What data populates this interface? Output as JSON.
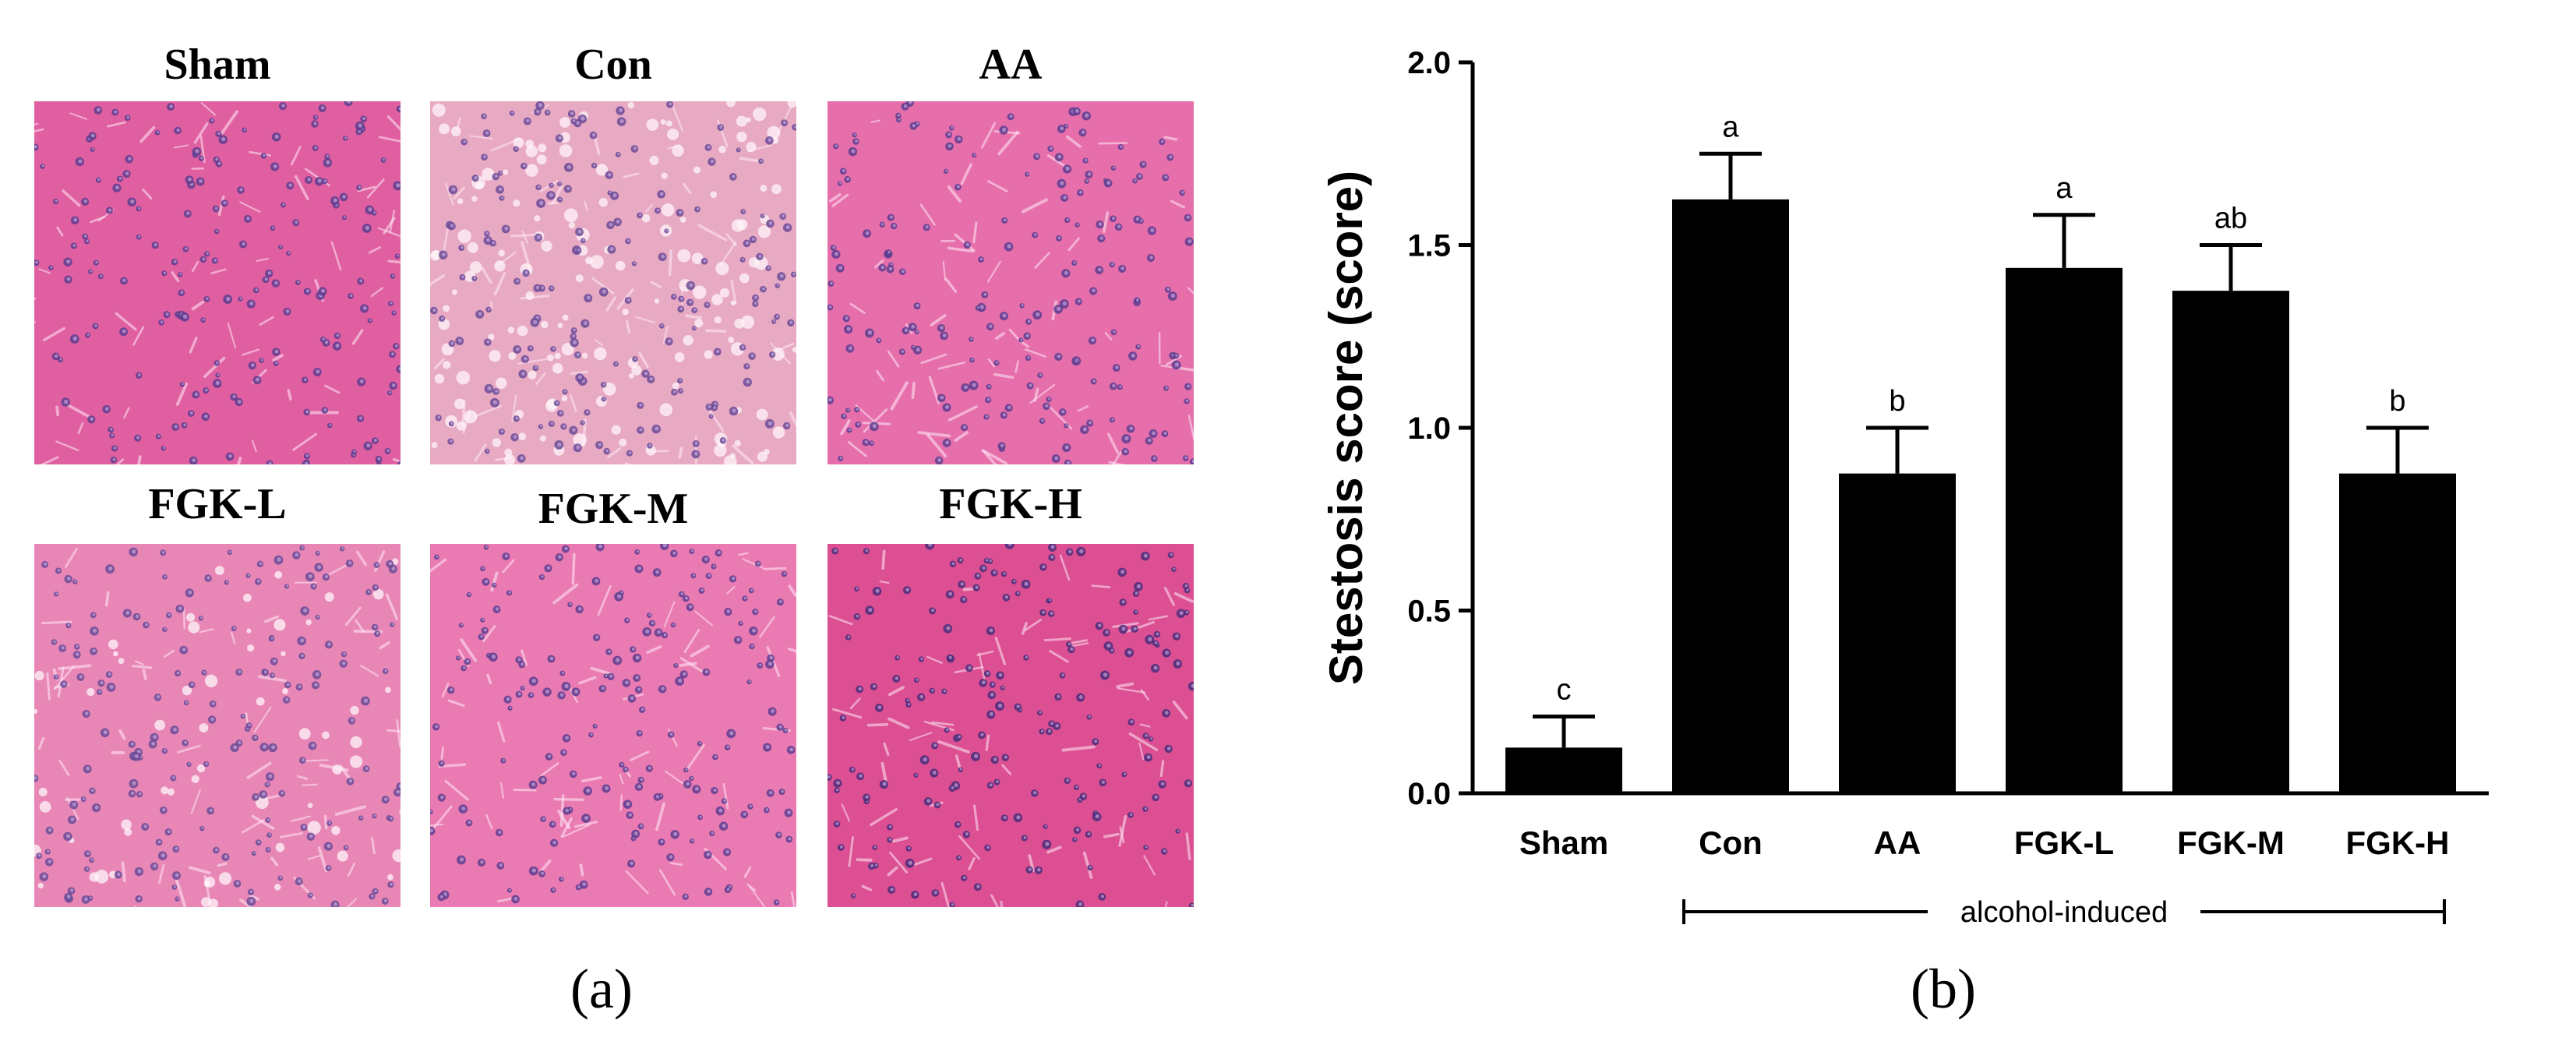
{
  "panel_a": {
    "label": "(a)",
    "micrographs": [
      {
        "title": "Sham",
        "tint": "#e05fa0",
        "nuclei": "#5d3c8f",
        "cell_density": "normal"
      },
      {
        "title": "Con",
        "tint": "#e8a9c3",
        "nuclei": "#6a4a96",
        "cell_density": "vacuolated"
      },
      {
        "title": "AA",
        "tint": "#e66fab",
        "nuclei": "#5d3c8f",
        "cell_density": "normal"
      },
      {
        "title": "FGK-L",
        "tint": "#e886b6",
        "nuclei": "#6a4a96",
        "cell_density": "mild"
      },
      {
        "title": "FGK-M",
        "tint": "#ea7ab2",
        "nuclei": "#5d3c8f",
        "cell_density": "normal"
      },
      {
        "title": "FGK-H",
        "tint": "#dc4f92",
        "nuclei": "#4a2c7a",
        "cell_density": "normal"
      }
    ]
  },
  "panel_b": {
    "label": "(b)"
  },
  "chart_data": {
    "type": "bar",
    "categories": [
      "Sham",
      "Con",
      "AA",
      "FGK-L",
      "FGK-M",
      "FGK-H"
    ],
    "values": [
      0.125,
      1.625,
      0.875,
      1.4375,
      1.375,
      0.875
    ],
    "errors": [
      0.085,
      0.125,
      0.125,
      0.145,
      0.125,
      0.125
    ],
    "significance_letters": [
      "c",
      "a",
      "b",
      "a",
      "ab",
      "b"
    ],
    "ylabel": "Stestosis score (score)",
    "xlabel": "",
    "ylim": [
      0.0,
      2.0
    ],
    "yticks": [
      "0.0",
      "0.5",
      "1.0",
      "1.5",
      "2.0"
    ],
    "ytick_values": [
      0.0,
      0.5,
      1.0,
      1.5,
      2.0
    ],
    "bar_color": "#000000",
    "group_bracket": {
      "label": "alcohol-induced",
      "from_category": "Con",
      "to_category": "FGK-H"
    },
    "grid": false,
    "legend": "none"
  }
}
